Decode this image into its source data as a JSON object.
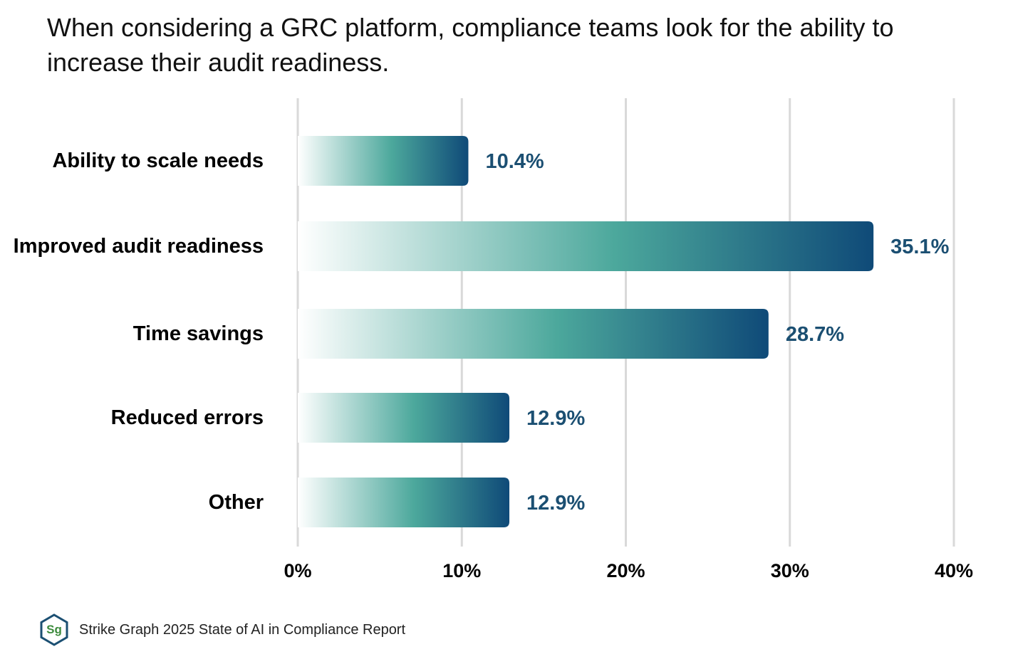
{
  "title": "When considering a GRC platform, compliance teams look for the ability to increase their audit readiness.",
  "chart_data": {
    "type": "bar",
    "orientation": "horizontal",
    "title": "When considering a GRC platform, compliance teams look for the ability to increase their audit readiness.",
    "categories": [
      "Ability to scale needs",
      "Improved audit readiness",
      "Time savings",
      "Reduced errors",
      "Other"
    ],
    "values": [
      10.4,
      35.1,
      28.7,
      12.9,
      12.9
    ],
    "value_labels": [
      "10.4%",
      "35.1%",
      "28.7%",
      "12.9%",
      "12.9%"
    ],
    "xlim": [
      0,
      40
    ],
    "xticks": [
      0,
      10,
      20,
      30,
      40
    ],
    "xtick_labels": [
      "0%",
      "10%",
      "20%",
      "30%",
      "40%"
    ],
    "xlabel": "",
    "ylabel": "",
    "grid": true,
    "colors": {
      "gradient_start": "#ffffff",
      "gradient_mid": "#4ca89c",
      "gradient_end": "#0f4a78",
      "value_label": "#1b4f72",
      "grid": "#d9d9d9"
    }
  },
  "footer": {
    "logo_text": "Sg",
    "source": "Strike Graph 2025 State of AI in Compliance Report"
  }
}
